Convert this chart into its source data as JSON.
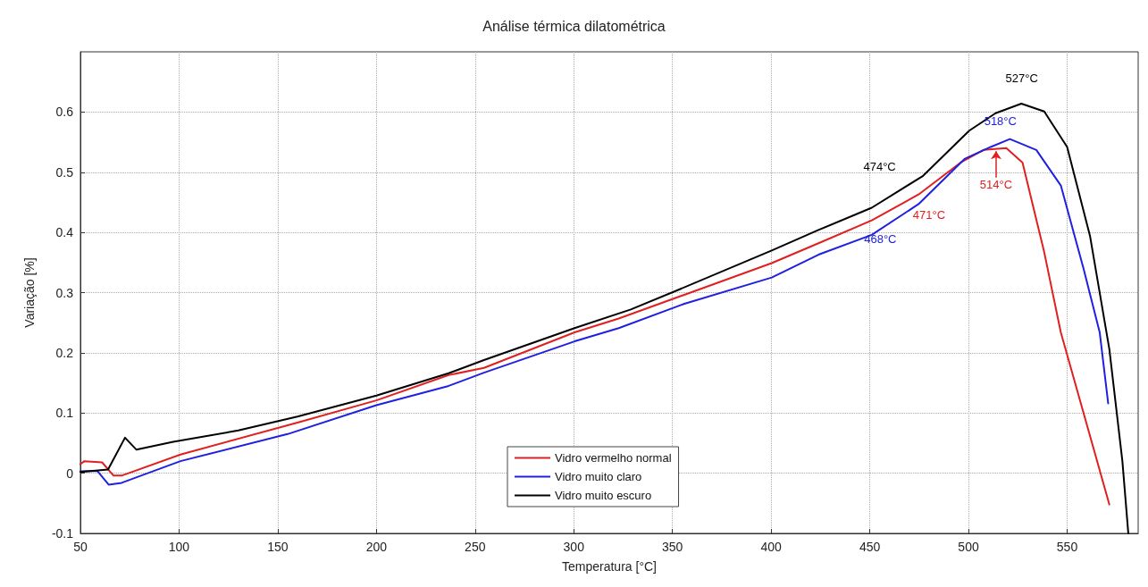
{
  "chart_data": {
    "type": "line",
    "title": "Análise térmica dilatométrica",
    "xlabel": "Temperatura [°C]",
    "ylabel": "Variação [%]",
    "xlim": [
      50,
      586
    ],
    "xticks": [
      50,
      100,
      150,
      200,
      250,
      300,
      350,
      400,
      450,
      500,
      550
    ],
    "ylim": [
      -0.1,
      0.7
    ],
    "yticks": [
      -0.1,
      0,
      0.1,
      0.2,
      0.3,
      0.4,
      0.5,
      0.6
    ],
    "grid": true,
    "legend": "bottom",
    "line_style": "solid",
    "marker": "none",
    "series": [
      {
        "name": "Vidro vermelho normal",
        "color": "#e02020",
        "x": [
          50,
          52,
          61,
          66.8,
          70.9,
          100.7,
          160,
          200,
          236.6,
          254.5,
          300.4,
          322.8,
          355.7,
          400.3,
          424,
          451,
          474.7,
          496,
          507.6,
          519.2,
          527.4,
          538.4,
          546.8,
          571.4
        ],
        "values": [
          0.015,
          0.02,
          0.018,
          -0.004,
          -0.004,
          0.031,
          0.084,
          0.121,
          0.163,
          0.175,
          0.234,
          0.257,
          0.296,
          0.349,
          0.382,
          0.42,
          0.463,
          0.516,
          0.537,
          0.54,
          0.516,
          0.367,
          0.234,
          -0.052
        ]
      },
      {
        "name": "Vidro muito claro",
        "color": "#2020e0",
        "x": [
          50,
          58.5,
          64.3,
          70.9,
          100.7,
          155,
          200,
          236.6,
          254.5,
          300.4,
          322.8,
          355.7,
          400.3,
          424,
          451,
          474.7,
          498,
          511.3,
          521,
          534.4,
          546.8,
          558.3,
          566.5,
          570.8
        ],
        "values": [
          0.003,
          0.004,
          -0.019,
          -0.016,
          0.02,
          0.065,
          0.113,
          0.145,
          0.167,
          0.219,
          0.241,
          0.281,
          0.325,
          0.363,
          0.396,
          0.447,
          0.522,
          0.542,
          0.555,
          0.537,
          0.478,
          0.34,
          0.234,
          0.116
        ]
      },
      {
        "name": "Vidro muito escuro",
        "color": "#000000",
        "x": [
          50,
          64,
          72.6,
          78.4,
          97,
          130,
          160,
          200,
          236.6,
          254.5,
          300.4,
          328.9,
          354,
          400.3,
          424,
          451,
          477,
          500.4,
          513.7,
          526.8,
          538.4,
          550,
          561.6,
          571.4,
          578,
          581
        ],
        "values": [
          0.002,
          0.006,
          0.059,
          0.039,
          0.052,
          0.071,
          0.094,
          0.129,
          0.166,
          0.188,
          0.241,
          0.272,
          0.306,
          0.37,
          0.404,
          0.441,
          0.494,
          0.569,
          0.598,
          0.614,
          0.601,
          0.542,
          0.394,
          0.206,
          0.02,
          -0.1
        ]
      }
    ],
    "annotations": [
      {
        "text": "527°C",
        "x": 527,
        "y": 0.614
      },
      {
        "text": "518°C",
        "x": 518,
        "y": 0.553
      },
      {
        "text": "474°C",
        "x": 474,
        "y": 0.488
      },
      {
        "text": "514°C",
        "x": 514,
        "y": 0.539
      },
      {
        "text": "471°C",
        "x": 471,
        "y": 0.456
      },
      {
        "text": "468°C",
        "x": 468,
        "y": 0.433
      }
    ]
  }
}
